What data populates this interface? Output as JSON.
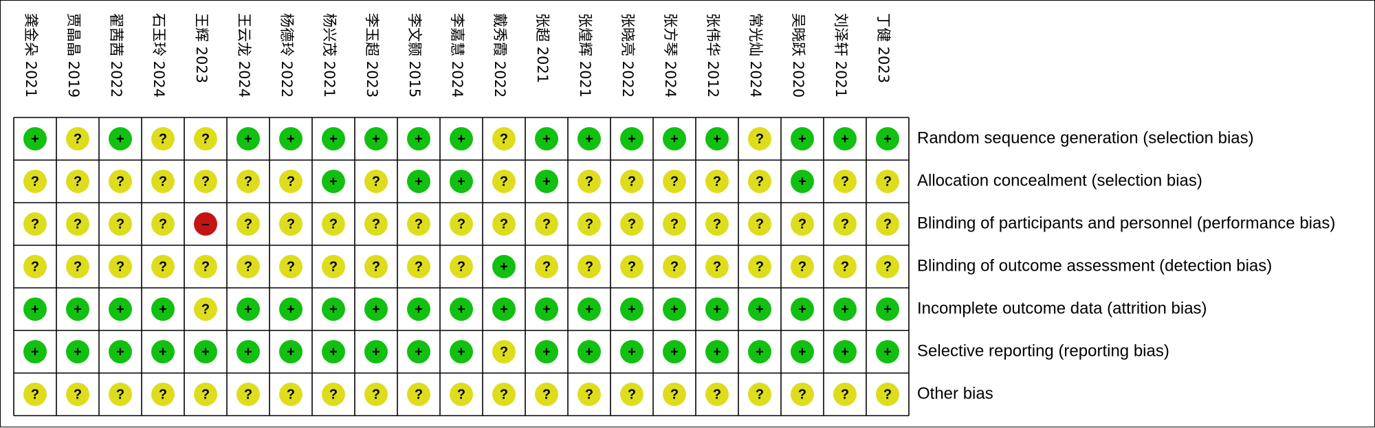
{
  "colors": {
    "low": "#11c011",
    "unclear": "#dddd1e",
    "high": "#c41313",
    "grid": "#000000",
    "background": "#ffffff"
  },
  "symbols": {
    "low": "+",
    "unclear": "?",
    "high": "–"
  },
  "chart_data": {
    "type": "table",
    "title": "",
    "studies": [
      "龚金朵 2021",
      "贾晶晶 2019",
      "翟茜茜 2022",
      "石玉玲 2024",
      "王辉 2023",
      "王云龙 2024",
      "杨德玲 2022",
      "杨兴茂 2021",
      "李玉超 2023",
      "李文颢 2015",
      "李嘉慧 2024",
      "戴秀霞 2022",
      "张超 2021",
      "张煌辉 2021",
      "张晓亮 2022",
      "张方琴 2024",
      "张伟华 2012",
      "常光灿 2024",
      "吴晓跃 2020",
      "刘泽轩 2021",
      "丁健 2023"
    ],
    "domains": [
      "Random sequence generation (selection bias)",
      "Allocation concealment (selection bias)",
      "Blinding of participants and personnel (performance bias)",
      "Blinding of outcome assessment (detection bias)",
      "Incomplete outcome data (attrition bias)",
      "Selective reporting (reporting bias)",
      "Other bias"
    ],
    "judgements": [
      [
        "low",
        "unclear",
        "low",
        "unclear",
        "unclear",
        "low",
        "low",
        "low",
        "low",
        "low",
        "low",
        "unclear",
        "low",
        "low",
        "low",
        "low",
        "low",
        "unclear",
        "low",
        "low",
        "low"
      ],
      [
        "unclear",
        "unclear",
        "unclear",
        "unclear",
        "unclear",
        "unclear",
        "unclear",
        "low",
        "unclear",
        "low",
        "low",
        "unclear",
        "low",
        "unclear",
        "unclear",
        "unclear",
        "unclear",
        "unclear",
        "low",
        "unclear",
        "unclear"
      ],
      [
        "unclear",
        "unclear",
        "unclear",
        "unclear",
        "high",
        "unclear",
        "unclear",
        "unclear",
        "unclear",
        "unclear",
        "unclear",
        "unclear",
        "unclear",
        "unclear",
        "unclear",
        "unclear",
        "unclear",
        "unclear",
        "unclear",
        "unclear",
        "unclear"
      ],
      [
        "unclear",
        "unclear",
        "unclear",
        "unclear",
        "unclear",
        "unclear",
        "unclear",
        "unclear",
        "unclear",
        "unclear",
        "unclear",
        "low",
        "unclear",
        "unclear",
        "unclear",
        "unclear",
        "unclear",
        "unclear",
        "unclear",
        "unclear",
        "unclear"
      ],
      [
        "low",
        "low",
        "low",
        "low",
        "unclear",
        "low",
        "low",
        "low",
        "low",
        "low",
        "low",
        "low",
        "low",
        "low",
        "low",
        "low",
        "low",
        "low",
        "low",
        "low",
        "low"
      ],
      [
        "low",
        "low",
        "low",
        "low",
        "low",
        "low",
        "low",
        "low",
        "low",
        "low",
        "low",
        "unclear",
        "low",
        "low",
        "low",
        "low",
        "low",
        "low",
        "low",
        "low",
        "low"
      ],
      [
        "unclear",
        "unclear",
        "unclear",
        "unclear",
        "unclear",
        "unclear",
        "unclear",
        "unclear",
        "unclear",
        "unclear",
        "unclear",
        "unclear",
        "unclear",
        "unclear",
        "unclear",
        "unclear",
        "unclear",
        "unclear",
        "unclear",
        "unclear",
        "unclear"
      ]
    ]
  }
}
